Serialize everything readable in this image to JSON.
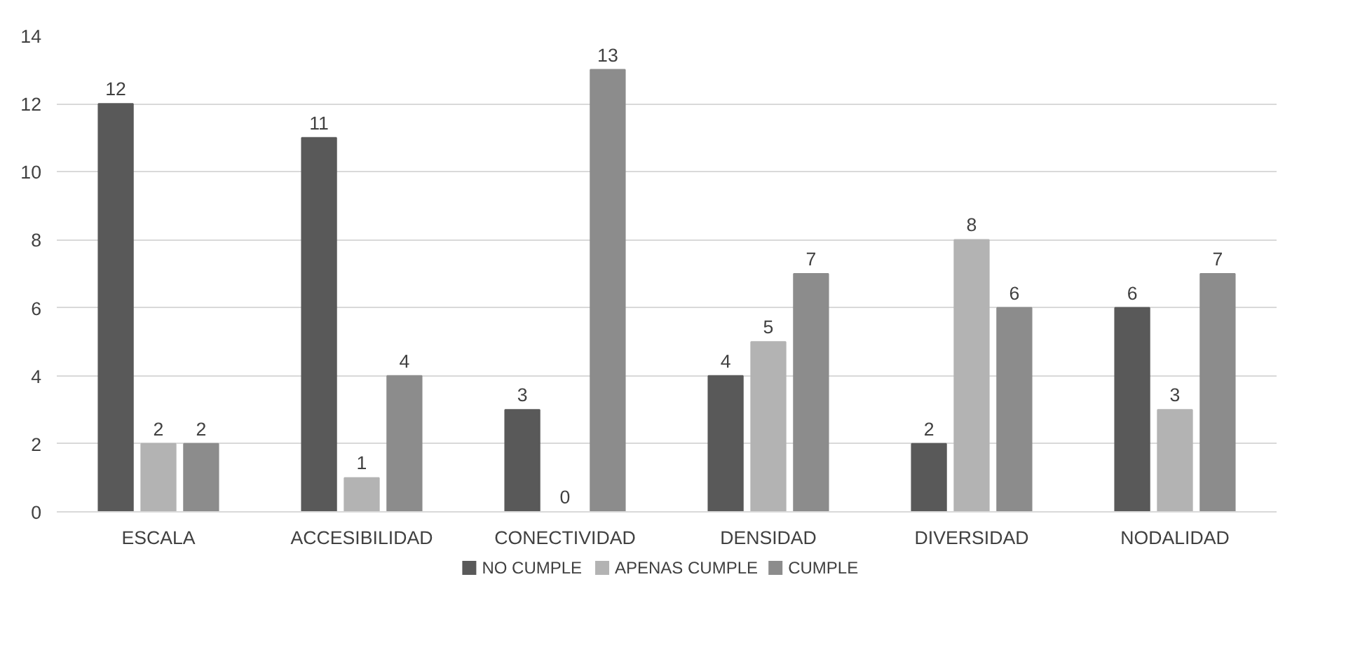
{
  "chart_data": {
    "type": "bar",
    "categories": [
      "ESCALA",
      "ACCESIBILIDAD",
      "CONECTIVIDAD",
      "DENSIDAD",
      "DIVERSIDAD",
      "NODALIDAD"
    ],
    "series": [
      {
        "name": "NO CUMPLE",
        "color": "#595959",
        "values": [
          12,
          11,
          3,
          4,
          2,
          6
        ]
      },
      {
        "name": "APENAS CUMPLE",
        "color": "#b3b3b3",
        "values": [
          2,
          1,
          0,
          5,
          8,
          3
        ]
      },
      {
        "name": "CUMPLE",
        "color": "#8c8c8c",
        "values": [
          2,
          4,
          13,
          7,
          6,
          7
        ]
      }
    ],
    "ylim": [
      0,
      14
    ],
    "yticks": [
      0,
      2,
      4,
      6,
      8,
      10,
      12,
      14
    ],
    "grid": "y",
    "legend": "bottom",
    "data_labels": true
  }
}
